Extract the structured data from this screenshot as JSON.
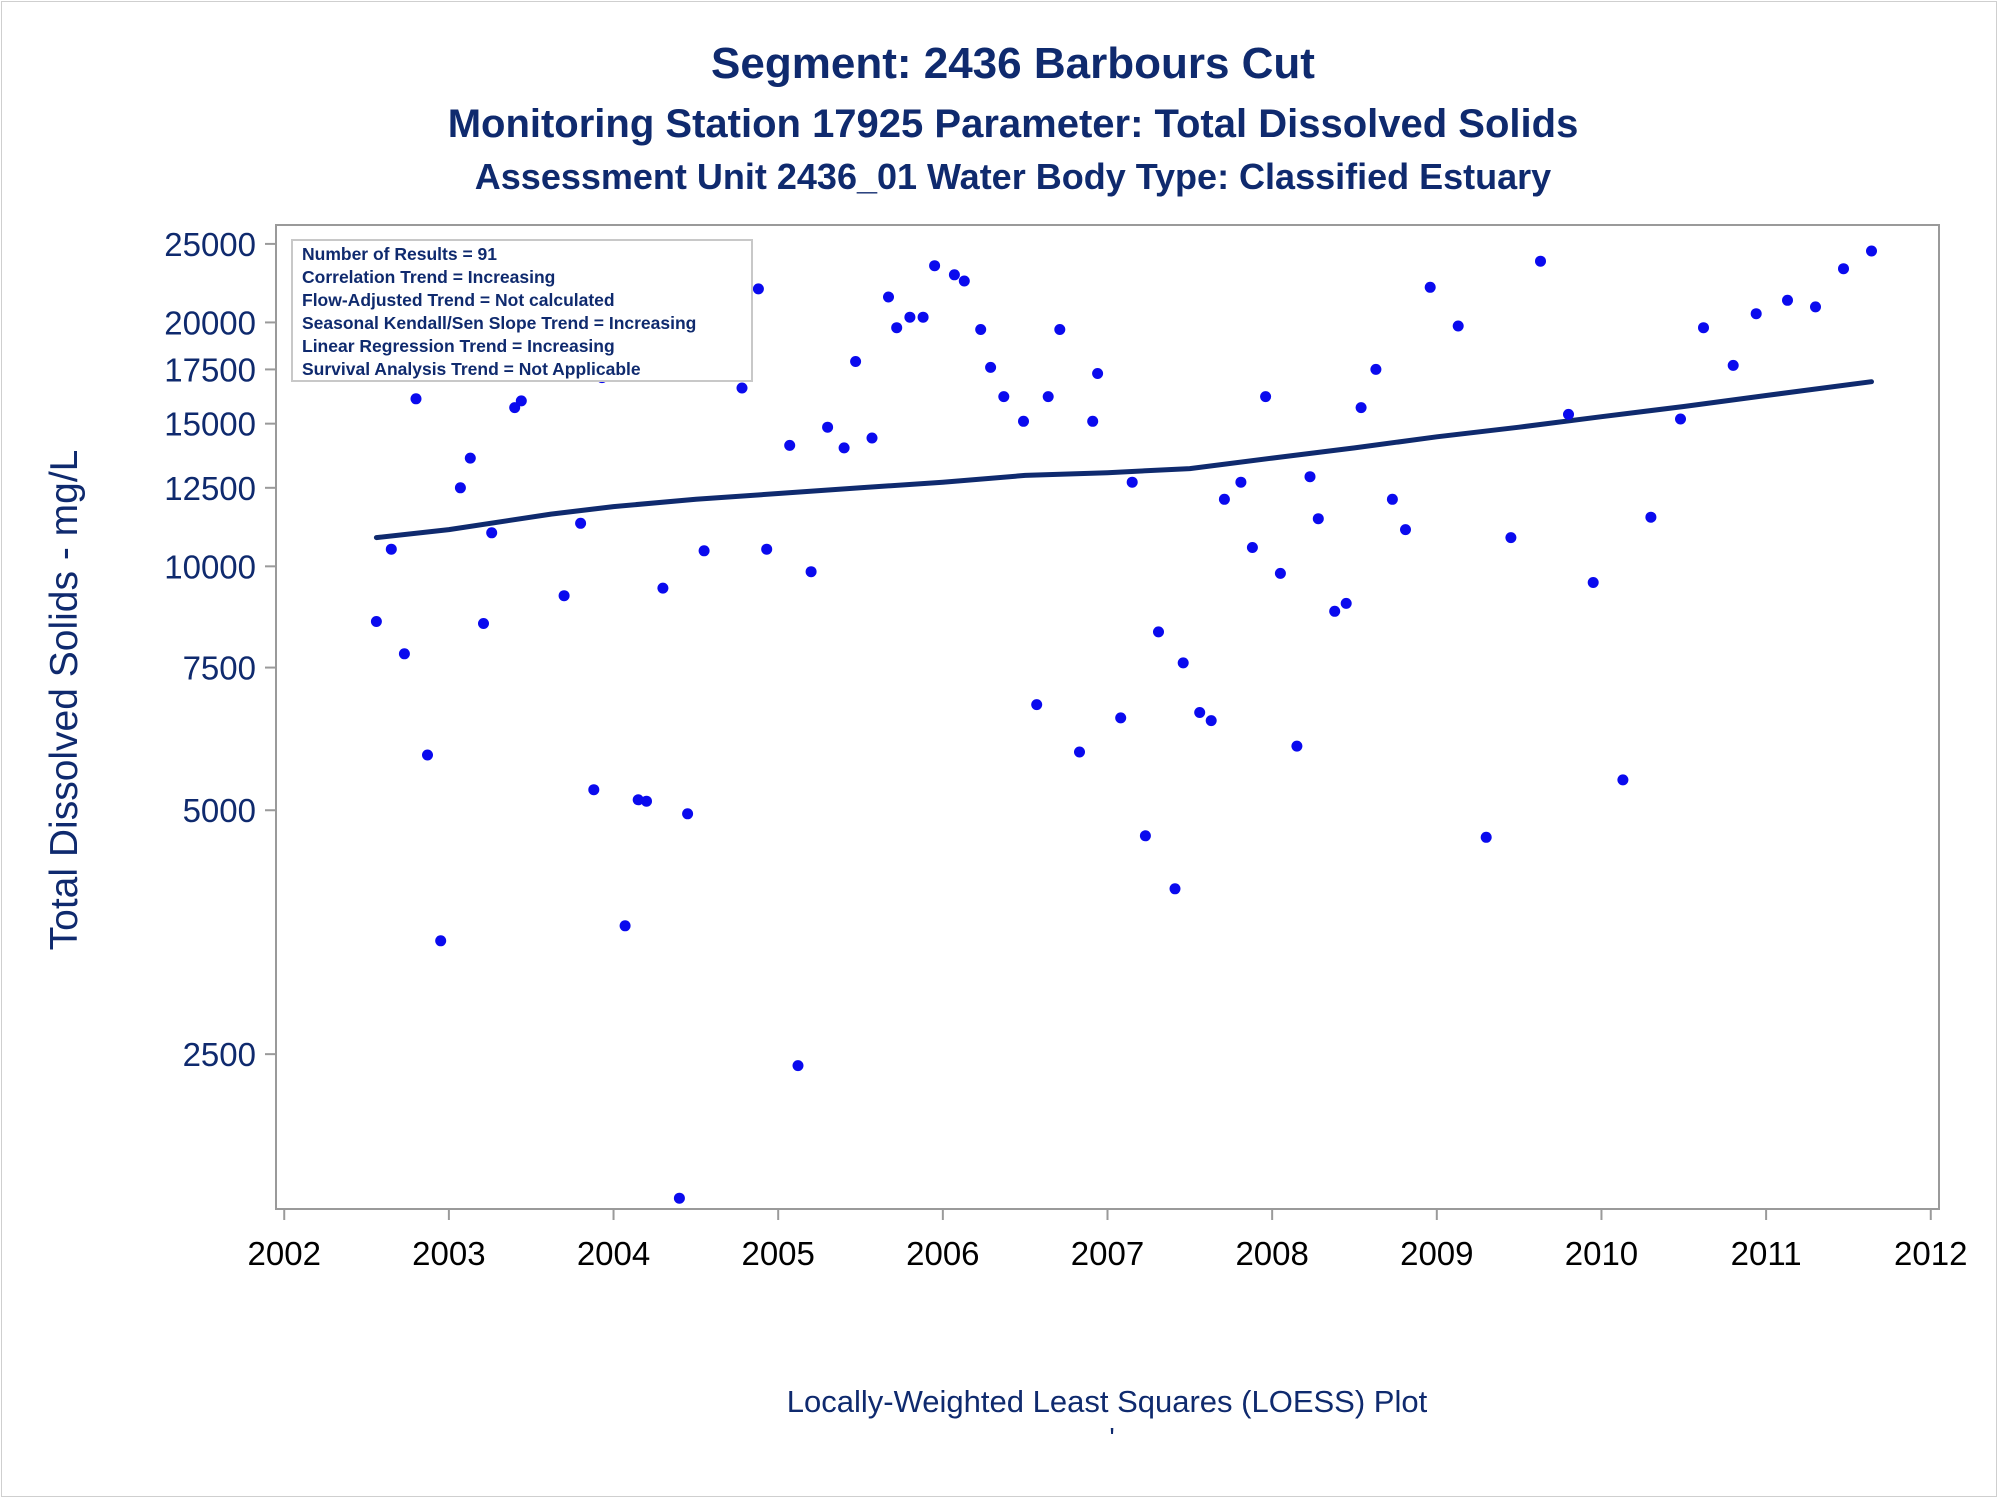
{
  "chart_data": {
    "type": "scatter",
    "title": "Segment: 2436  Barbours Cut",
    "subtitle": "Monitoring Station 17925 Parameter: Total Dissolved Solids",
    "subtitle2": "Assessment Unit 2436_01   Water Body Type: Classified Estuary",
    "xlabel": "",
    "ylabel": "Total Dissolved Solids - mg/L",
    "footnote": "Locally-Weighted Least Squares (LOESS) Plot",
    "footnote_mark": "'",
    "y_scale": "log",
    "xlim": [
      2001.95,
      2012.05
    ],
    "ylim": [
      1610,
      26380
    ],
    "x_ticks": [
      2002,
      2003,
      2004,
      2005,
      2006,
      2007,
      2008,
      2009,
      2010,
      2011,
      2012
    ],
    "x_tick_labels": [
      "2002",
      "2003",
      "2004",
      "2005",
      "2006",
      "2007",
      "2008",
      "2009",
      "2010",
      "2011",
      "2012"
    ],
    "y_ticks": [
      2500,
      5000,
      7500,
      10000,
      12500,
      15000,
      17500,
      20000,
      25000
    ],
    "y_tick_labels": [
      "2500",
      "5000",
      "7500",
      "10000",
      "12500",
      "15000",
      "17500",
      "20000",
      "25000"
    ],
    "grid": false,
    "legend": {
      "placement": "top-left",
      "lines": [
        "Number of Results = 91",
        "Correlation Trend = Increasing",
        "Flow-Adjusted Trend = Not calculated",
        "Seasonal Kendall/Sen Slope Trend = Increasing",
        "Linear Regression Trend = Increasing",
        "Survival Analysis Trend = Not Applicable"
      ]
    },
    "colors": {
      "points": "#0a0aee",
      "trend": "#0f2a6e",
      "text": "#0f2a6e",
      "frame": "#9a9a9a"
    },
    "series": [
      {
        "kind": "points",
        "x": [
          2002.56,
          2002.65,
          2002.73,
          2002.8,
          2002.87,
          2002.95,
          2003.07,
          2003.13,
          2003.21,
          2003.26,
          2003.4,
          2003.44,
          2003.62,
          2003.7,
          2003.8,
          2003.88,
          2003.93,
          2004.07,
          2004.15,
          2004.2,
          2004.3,
          2004.4,
          2004.45,
          2004.55,
          2004.62,
          2004.78,
          2004.88,
          2004.93,
          2005.07,
          2005.12,
          2005.2,
          2005.3,
          2005.4,
          2005.47,
          2005.57,
          2005.67,
          2005.72,
          2005.8,
          2005.88,
          2005.95,
          2006.07,
          2006.13,
          2006.23,
          2006.29,
          2006.37,
          2006.49,
          2006.57,
          2006.64,
          2006.71,
          2006.83,
          2006.91,
          2006.94,
          2007.08,
          2007.15,
          2007.23,
          2007.31,
          2007.41,
          2007.46,
          2007.56,
          2007.63,
          2007.71,
          2007.81,
          2007.88,
          2007.96,
          2008.05,
          2008.15,
          2008.23,
          2008.28,
          2008.38,
          2008.45,
          2008.54,
          2008.63,
          2008.73,
          2008.81,
          2008.96,
          2009.13,
          2009.3,
          2009.45,
          2009.63,
          2009.8,
          2009.95,
          2010.13,
          2010.3,
          2010.48,
          2010.62,
          2010.8,
          2010.94,
          2011.13,
          2011.3,
          2011.47,
          2011.64
        ],
        "y": [
          8550,
          10500,
          7800,
          16100,
          5850,
          3450,
          12500,
          13600,
          8500,
          11000,
          15700,
          16000,
          21200,
          9200,
          11300,
          5300,
          17100,
          3600,
          5150,
          5130,
          9400,
          1660,
          4950,
          10450,
          18300,
          16600,
          22000,
          10500,
          14100,
          2420,
          9850,
          14850,
          14000,
          17900,
          14400,
          21500,
          19700,
          20300,
          20300,
          23500,
          22900,
          22500,
          19600,
          17600,
          16200,
          15100,
          6750,
          16200,
          19600,
          5900,
          15100,
          17300,
          6500,
          12700,
          4650,
          8300,
          4000,
          7600,
          6600,
          6450,
          12100,
          12700,
          10550,
          16200,
          9800,
          6000,
          12900,
          11450,
          8800,
          9000,
          15700,
          17500,
          12100,
          11100,
          22100,
          19800,
          4630,
          10850,
          23800,
          15400,
          9550,
          5450,
          11500,
          15200,
          19700,
          17700,
          20500,
          21300,
          20900,
          23300,
          24500
        ]
      },
      {
        "kind": "loess",
        "x": [
          2002.56,
          2003.0,
          2003.62,
          2004.0,
          2004.5,
          2005.0,
          2005.5,
          2006.0,
          2006.5,
          2007.0,
          2007.5,
          2008.0,
          2008.5,
          2009.0,
          2009.5,
          2010.0,
          2010.5,
          2011.0,
          2011.64
        ],
        "y": [
          10850,
          11100,
          11600,
          11850,
          12100,
          12300,
          12500,
          12700,
          12950,
          13050,
          13200,
          13600,
          14000,
          14450,
          14850,
          15300,
          15750,
          16250,
          16900
        ]
      }
    ]
  }
}
